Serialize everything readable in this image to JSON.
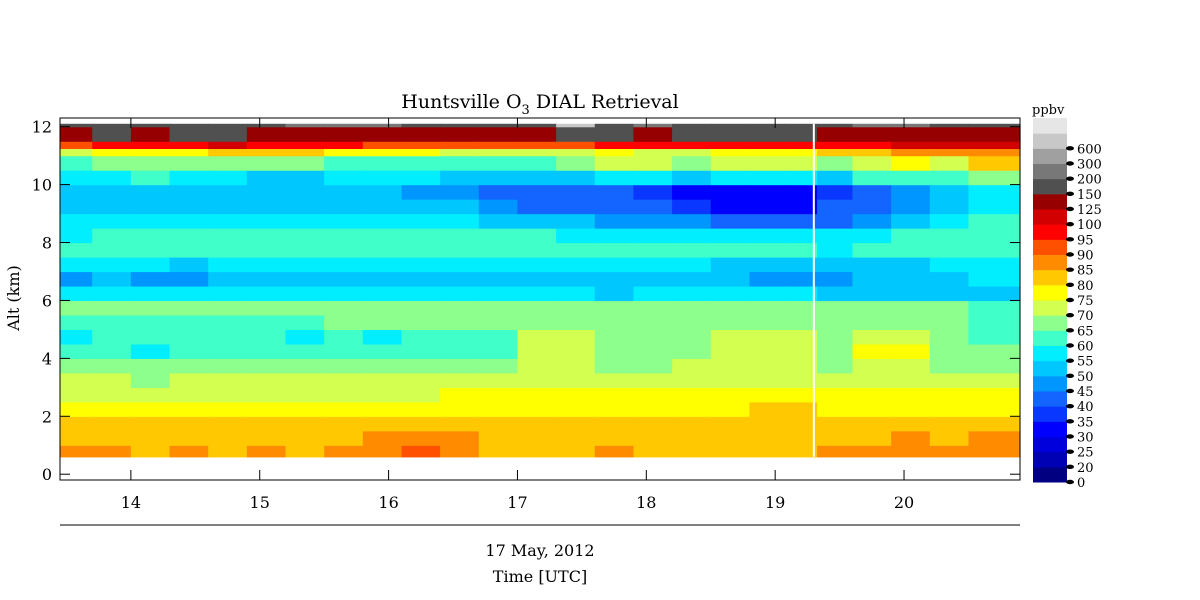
{
  "chart_data": {
    "type": "heatmap",
    "title": "Huntsville O3 DIAL Retrieval",
    "title_main": "Huntsville O",
    "title_sub": "3",
    "title_tail": " DIAL Retrieval",
    "ylabel": "Alt (km)",
    "xlabel": "Time [UTC]",
    "date_label": "17 May, 2012",
    "x_range": [
      13.45,
      20.9
    ],
    "y_range": [
      -0.2,
      12.3
    ],
    "x_ticks": [
      14,
      15,
      16,
      17,
      18,
      19,
      20
    ],
    "x_tick_labels": [
      "14",
      "15",
      "16",
      "17",
      "18",
      "19",
      "20"
    ],
    "y_ticks": [
      0,
      2,
      4,
      6,
      8,
      10,
      12
    ],
    "y_tick_labels": [
      "0",
      "2",
      "4",
      "6",
      "8",
      "10",
      "12"
    ],
    "data_altitude_range_km": [
      0.6,
      12.1
    ],
    "data_gap_utc": 19.3,
    "colorbar": {
      "unit": "ppbv",
      "labels": [
        "0",
        "20",
        "25",
        "30",
        "35",
        "40",
        "45",
        "50",
        "55",
        "60",
        "65",
        "70",
        "75",
        "80",
        "85",
        "90",
        "95",
        "100",
        "125",
        "150",
        "200",
        "300",
        "600"
      ],
      "colors": [
        "#000080",
        "#0000b4",
        "#0000dc",
        "#0000ff",
        "#0a37ff",
        "#1464ff",
        "#0096ff",
        "#00c8ff",
        "#00eeff",
        "#40ffc8",
        "#8cff8c",
        "#d2ff50",
        "#ffff00",
        "#ffc800",
        "#ff8c00",
        "#ff5000",
        "#ff0000",
        "#d20000",
        "#960000",
        "#505050",
        "#787878",
        "#a0a0a0",
        "#c8c8c8",
        "#e6e6e6"
      ]
    },
    "columns_utc": [
      13.55,
      13.85,
      14.15,
      14.45,
      14.75,
      15.05,
      15.35,
      15.65,
      15.95,
      16.25,
      16.55,
      16.85,
      17.15,
      17.45,
      17.75,
      18.05,
      18.35,
      18.65,
      18.95,
      19.2,
      19.45,
      19.75,
      20.05,
      20.35,
      20.65
    ],
    "profile_levels_km": [
      0.6,
      1.0,
      1.5,
      2.0,
      2.5,
      3.0,
      3.5,
      4.0,
      4.5,
      5.0,
      5.5,
      6.0,
      6.5,
      7.0,
      7.5,
      8.0,
      8.5,
      9.0,
      9.5,
      10.0,
      10.5,
      11.0,
      11.25,
      11.5,
      12.0
    ],
    "ozone_ppbv_profiles": [
      [
        86,
        84,
        82,
        78,
        74,
        70,
        67,
        62,
        58,
        64,
        68,
        58,
        48,
        58,
        62,
        58,
        56,
        54,
        52,
        58,
        64,
        74,
        94,
        140,
        180
      ],
      [
        85,
        84,
        81,
        78,
        74,
        70,
        66,
        60,
        62,
        64,
        68,
        56,
        50,
        56,
        62,
        60,
        56,
        54,
        52,
        58,
        66,
        76,
        96,
        150,
        170
      ],
      [
        84,
        83,
        81,
        77,
        73,
        69,
        66,
        58,
        60,
        64,
        68,
        56,
        48,
        56,
        60,
        62,
        58,
        54,
        54,
        60,
        66,
        76,
        95,
        140,
        190
      ],
      [
        85,
        84,
        82,
        78,
        74,
        70,
        66,
        60,
        62,
        64,
        67,
        56,
        48,
        54,
        60,
        60,
        58,
        52,
        50,
        56,
        66,
        78,
        98,
        150,
        180
      ],
      [
        84,
        82,
        80,
        77,
        74,
        70,
        66,
        60,
        62,
        64,
        67,
        56,
        50,
        56,
        60,
        62,
        58,
        52,
        50,
        56,
        68,
        84,
        110,
        170,
        160
      ],
      [
        85,
        84,
        81,
        78,
        74,
        70,
        66,
        60,
        60,
        64,
        67,
        56,
        50,
        56,
        60,
        60,
        58,
        52,
        50,
        54,
        66,
        84,
        95,
        140,
        170
      ],
      [
        84,
        83,
        81,
        78,
        74,
        70,
        67,
        60,
        58,
        64,
        68,
        58,
        52,
        56,
        60,
        62,
        58,
        54,
        50,
        54,
        66,
        80,
        96,
        140,
        220
      ],
      [
        88,
        84,
        81,
        78,
        74,
        70,
        67,
        62,
        60,
        65,
        68,
        58,
        52,
        56,
        60,
        62,
        58,
        54,
        52,
        56,
        64,
        78,
        95,
        130,
        200
      ],
      [
        89,
        86,
        82,
        78,
        74,
        70,
        68,
        62,
        58,
        66,
        69,
        58,
        52,
        56,
        60,
        60,
        58,
        54,
        52,
        56,
        64,
        76,
        94,
        130,
        220
      ],
      [
        90,
        86,
        82,
        78,
        74,
        70,
        68,
        64,
        62,
        66,
        69,
        58,
        52,
        56,
        60,
        60,
        56,
        52,
        48,
        56,
        64,
        76,
        93,
        140,
        180
      ],
      [
        89,
        86,
        82,
        78,
        75,
        71,
        68,
        64,
        64,
        66,
        69,
        58,
        54,
        56,
        60,
        60,
        56,
        50,
        46,
        52,
        62,
        74,
        92,
        140,
        170
      ],
      [
        84,
        83,
        81,
        78,
        75,
        71,
        68,
        64,
        64,
        66,
        69,
        58,
        54,
        56,
        60,
        60,
        54,
        48,
        44,
        52,
        62,
        72,
        90,
        130,
        190
      ],
      [
        84,
        84,
        82,
        79,
        76,
        72,
        70,
        70,
        70,
        69,
        68,
        56,
        52,
        58,
        62,
        60,
        52,
        42,
        40,
        52,
        64,
        74,
        92,
        130,
        160
      ],
      [
        84,
        84,
        82,
        79,
        76,
        72,
        70,
        70,
        70,
        69,
        68,
        56,
        52,
        58,
        62,
        58,
        50,
        40,
        42,
        54,
        66,
        74,
        93,
        150,
        600
      ],
      [
        85,
        84,
        82,
        78,
        75,
        72,
        69,
        66,
        66,
        69,
        68,
        54,
        50,
        56,
        62,
        58,
        48,
        42,
        44,
        58,
        70,
        76,
        95,
        150,
        190
      ],
      [
        84,
        84,
        82,
        78,
        75,
        72,
        69,
        66,
        66,
        69,
        68,
        56,
        50,
        56,
        62,
        58,
        48,
        40,
        36,
        58,
        70,
        74,
        95,
        140,
        200
      ],
      [
        84,
        84,
        82,
        79,
        76,
        72,
        70,
        68,
        68,
        69,
        68,
        56,
        50,
        56,
        62,
        58,
        46,
        38,
        34,
        54,
        68,
        74,
        95,
        150,
        180
      ],
      [
        84,
        84,
        82,
        79,
        77,
        73,
        70,
        70,
        70,
        69,
        68,
        56,
        50,
        54,
        60,
        56,
        44,
        34,
        34,
        56,
        70,
        76,
        96,
        150,
        160
      ],
      [
        84,
        84,
        82,
        80,
        77,
        73,
        72,
        72,
        70,
        69,
        68,
        56,
        48,
        54,
        60,
        56,
        42,
        34,
        34,
        56,
        72,
        78,
        96,
        150,
        150
      ],
      [
        84,
        84,
        82,
        80,
        77,
        73,
        72,
        72,
        70,
        69,
        68,
        56,
        48,
        54,
        60,
        56,
        42,
        34,
        34,
        56,
        72,
        78,
        96,
        150,
        150
      ],
      [
        88,
        84,
        82,
        78,
        75,
        72,
        69,
        68,
        66,
        68,
        66,
        52,
        48,
        52,
        58,
        56,
        42,
        40,
        38,
        54,
        68,
        80,
        96,
        130,
        190
      ],
      [
        86,
        84,
        82,
        78,
        75,
        72,
        70,
        75,
        70,
        68,
        66,
        52,
        50,
        54,
        60,
        58,
        48,
        42,
        44,
        60,
        72,
        82,
        98,
        140,
        200
      ],
      [
        88,
        85,
        83,
        79,
        76,
        73,
        70,
        75,
        72,
        69,
        67,
        54,
        50,
        54,
        60,
        60,
        52,
        46,
        46,
        60,
        76,
        88,
        105,
        140,
        220
      ],
      [
        86,
        84,
        82,
        78,
        75,
        72,
        69,
        68,
        68,
        67,
        66,
        54,
        52,
        56,
        60,
        62,
        56,
        50,
        52,
        60,
        74,
        86,
        110,
        130,
        170
      ],
      [
        88,
        85,
        83,
        79,
        76,
        72,
        69,
        66,
        62,
        64,
        64,
        54,
        56,
        58,
        62,
        64,
        60,
        56,
        58,
        66,
        80,
        86,
        115,
        140,
        160
      ]
    ]
  }
}
